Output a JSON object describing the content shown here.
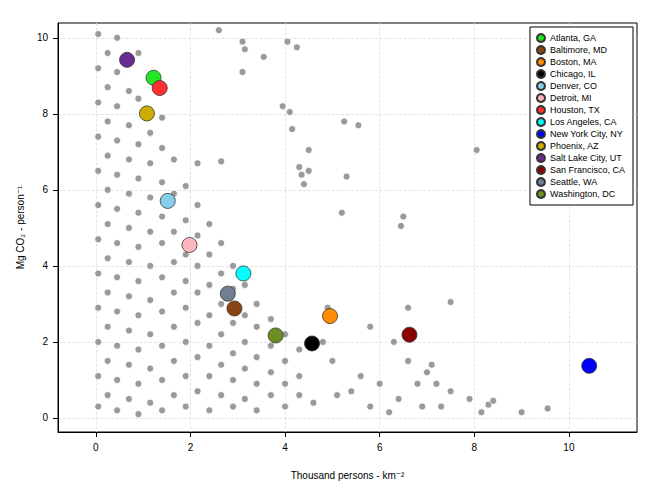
{
  "chart_data": {
    "type": "scatter",
    "x_label": "Thousand persons - km⁻²",
    "y_label": "Mg CO₂ - person⁻¹",
    "xlim": [
      -0.8,
      11.44
    ],
    "ylim": [
      -0.37,
      10.39
    ],
    "xticks": [
      0,
      2,
      4,
      6,
      8,
      10
    ],
    "yticks": [
      0,
      2,
      4,
      6,
      8,
      10
    ],
    "grid": true,
    "legend": "top-right",
    "marker": "circle",
    "series": [
      {
        "color": "#9a9a9a",
        "points": [
          [
            0.05,
            0.3
          ],
          [
            0.05,
            1.1
          ],
          [
            0.05,
            2.0
          ],
          [
            0.05,
            2.9
          ],
          [
            0.05,
            3.8
          ],
          [
            0.05,
            4.7
          ],
          [
            0.05,
            5.6
          ],
          [
            0.05,
            6.5
          ],
          [
            0.05,
            7.4
          ],
          [
            0.05,
            8.3
          ],
          [
            0.05,
            9.2
          ],
          [
            0.05,
            10.1
          ],
          [
            0.25,
            0.6
          ],
          [
            0.25,
            1.5
          ],
          [
            0.25,
            2.4
          ],
          [
            0.25,
            3.3
          ],
          [
            0.25,
            4.2
          ],
          [
            0.25,
            5.1
          ],
          [
            0.25,
            6.0
          ],
          [
            0.25,
            6.9
          ],
          [
            0.25,
            7.8
          ],
          [
            0.25,
            8.7
          ],
          [
            0.25,
            9.6
          ],
          [
            0.45,
            0.2
          ],
          [
            0.45,
            1.0
          ],
          [
            0.45,
            1.9
          ],
          [
            0.45,
            2.8
          ],
          [
            0.45,
            3.7
          ],
          [
            0.45,
            4.6
          ],
          [
            0.45,
            5.5
          ],
          [
            0.45,
            6.4
          ],
          [
            0.45,
            7.3
          ],
          [
            0.45,
            8.2
          ],
          [
            0.45,
            9.1
          ],
          [
            0.45,
            10.0
          ],
          [
            0.7,
            0.5
          ],
          [
            0.7,
            1.4
          ],
          [
            0.7,
            2.3
          ],
          [
            0.7,
            3.2
          ],
          [
            0.7,
            4.1
          ],
          [
            0.7,
            5.0
          ],
          [
            0.7,
            5.9
          ],
          [
            0.7,
            6.8
          ],
          [
            0.7,
            7.7
          ],
          [
            0.7,
            8.6
          ],
          [
            0.9,
            0.1
          ],
          [
            0.9,
            0.9
          ],
          [
            0.9,
            1.8
          ],
          [
            0.9,
            2.7
          ],
          [
            0.9,
            3.6
          ],
          [
            0.9,
            4.5
          ],
          [
            0.9,
            5.4
          ],
          [
            0.9,
            6.3
          ],
          [
            0.9,
            7.2
          ],
          [
            0.9,
            8.4
          ],
          [
            0.9,
            9.6
          ],
          [
            1.15,
            0.4
          ],
          [
            1.15,
            1.3
          ],
          [
            1.15,
            2.2
          ],
          [
            1.15,
            3.1
          ],
          [
            1.15,
            4.0
          ],
          [
            1.15,
            4.9
          ],
          [
            1.15,
            5.8
          ],
          [
            1.15,
            6.7
          ],
          [
            1.15,
            7.5
          ],
          [
            1.4,
            0.2
          ],
          [
            1.4,
            1.0
          ],
          [
            1.4,
            1.9
          ],
          [
            1.4,
            2.8
          ],
          [
            1.4,
            3.7
          ],
          [
            1.4,
            4.6
          ],
          [
            1.4,
            5.3
          ],
          [
            1.4,
            6.2
          ],
          [
            1.4,
            7.1
          ],
          [
            1.4,
            7.9
          ],
          [
            1.65,
            0.6
          ],
          [
            1.65,
            1.5
          ],
          [
            1.65,
            2.4
          ],
          [
            1.65,
            3.3
          ],
          [
            1.65,
            4.1
          ],
          [
            1.65,
            4.9
          ],
          [
            1.65,
            5.9
          ],
          [
            1.65,
            6.8
          ],
          [
            1.9,
            0.3
          ],
          [
            1.9,
            1.1
          ],
          [
            1.9,
            2.0
          ],
          [
            1.9,
            2.9
          ],
          [
            1.9,
            3.6
          ],
          [
            1.9,
            4.3
          ],
          [
            1.9,
            5.2
          ],
          [
            1.9,
            6.1
          ],
          [
            2.15,
            0.7
          ],
          [
            2.15,
            1.6
          ],
          [
            2.15,
            2.5
          ],
          [
            2.15,
            3.3
          ],
          [
            2.15,
            4.0
          ],
          [
            2.15,
            4.8
          ],
          [
            2.15,
            5.6
          ],
          [
            2.15,
            6.7
          ],
          [
            2.4,
            0.2
          ],
          [
            2.4,
            1.1
          ],
          [
            2.4,
            1.9
          ],
          [
            2.4,
            2.7
          ],
          [
            2.4,
            3.5
          ],
          [
            2.4,
            4.3
          ],
          [
            2.4,
            5.1
          ],
          [
            2.65,
            0.6
          ],
          [
            2.65,
            1.4
          ],
          [
            2.65,
            2.2
          ],
          [
            2.65,
            3.0
          ],
          [
            2.65,
            3.8
          ],
          [
            2.65,
            4.6
          ],
          [
            2.65,
            6.75
          ],
          [
            2.9,
            0.3
          ],
          [
            2.9,
            1.0
          ],
          [
            2.9,
            1.7
          ],
          [
            2.9,
            2.5
          ],
          [
            2.9,
            3.4
          ],
          [
            2.9,
            4.0
          ],
          [
            3.15,
            0.5
          ],
          [
            3.15,
            1.3
          ],
          [
            3.15,
            2.0
          ],
          [
            3.15,
            2.7
          ],
          [
            3.15,
            3.5
          ],
          [
            3.4,
            0.2
          ],
          [
            3.4,
            0.9
          ],
          [
            3.4,
            1.6
          ],
          [
            3.4,
            2.4
          ],
          [
            3.4,
            3.0
          ],
          [
            3.7,
            0.6
          ],
          [
            3.7,
            1.2
          ],
          [
            3.7,
            1.9
          ],
          [
            3.7,
            2.6
          ],
          [
            4.0,
            0.3
          ],
          [
            4.0,
            0.9
          ],
          [
            4.0,
            1.5
          ],
          [
            4.0,
            2.2
          ],
          [
            4.3,
            0.6
          ],
          [
            4.3,
            1.1
          ],
          [
            4.3,
            1.8
          ],
          [
            2.6,
            10.2
          ],
          [
            3.1,
            9.9
          ],
          [
            3.15,
            9.7
          ],
          [
            3.1,
            9.1
          ],
          [
            3.55,
            9.5
          ],
          [
            4.05,
            9.9
          ],
          [
            4.25,
            9.75
          ],
          [
            3.95,
            8.2
          ],
          [
            4.1,
            8.05
          ],
          [
            4.15,
            7.6
          ],
          [
            4.35,
            6.4
          ],
          [
            4.4,
            6.15
          ],
          [
            4.3,
            6.6
          ],
          [
            4.5,
            7.05
          ],
          [
            4.5,
            6.5
          ],
          [
            5.25,
            7.8
          ],
          [
            5.55,
            7.7
          ],
          [
            5.3,
            6.35
          ],
          [
            5.2,
            5.4
          ],
          [
            6.45,
            5.05
          ],
          [
            6.5,
            5.3
          ],
          [
            8.05,
            7.05
          ],
          [
            7.5,
            3.05
          ],
          [
            6.6,
            2.9
          ],
          [
            5.8,
            2.4
          ],
          [
            6.3,
            2.0
          ],
          [
            6.6,
            1.5
          ],
          [
            7.0,
            1.2
          ],
          [
            7.2,
            0.9
          ],
          [
            7.1,
            1.4
          ],
          [
            7.5,
            0.7
          ],
          [
            7.9,
            0.5
          ],
          [
            8.3,
            0.35
          ],
          [
            8.4,
            0.45
          ],
          [
            8.15,
            0.15
          ],
          [
            9.0,
            0.15
          ],
          [
            9.55,
            0.25
          ],
          [
            7.3,
            0.3
          ],
          [
            6.9,
            0.3
          ],
          [
            6.4,
            0.5
          ],
          [
            6.0,
            0.9
          ],
          [
            5.6,
            1.1
          ],
          [
            5.4,
            0.7
          ],
          [
            5.0,
            1.5
          ],
          [
            4.8,
            2.0
          ],
          [
            4.9,
            2.9
          ],
          [
            5.1,
            0.6
          ],
          [
            4.6,
            0.4
          ],
          [
            6.8,
            0.9
          ],
          [
            5.8,
            0.3
          ],
          [
            6.2,
            0.15
          ]
        ]
      },
      {
        "name": "Atlanta, GA",
        "color": "#22e622",
        "points": [
          [
            1.22,
            8.95
          ]
        ]
      },
      {
        "name": "Baltimore, MD",
        "color": "#8b4513",
        "points": [
          [
            2.93,
            2.88
          ]
        ]
      },
      {
        "name": "Boston, MA",
        "color": "#ff8c00",
        "points": [
          [
            4.95,
            2.68
          ]
        ]
      },
      {
        "name": "Chicago, IL",
        "color": "#000000",
        "points": [
          [
            4.57,
            1.96
          ]
        ]
      },
      {
        "name": "Denver, CO",
        "color": "#87ceeb",
        "points": [
          [
            1.52,
            5.71
          ]
        ]
      },
      {
        "name": "Detroit, MI",
        "color": "#ffb6c1",
        "points": [
          [
            1.98,
            4.55
          ]
        ]
      },
      {
        "name": "Houston, TX",
        "color": "#ff3030",
        "points": [
          [
            1.35,
            8.68
          ]
        ]
      },
      {
        "name": "Los Angeles, CA",
        "color": "#00ffff",
        "points": [
          [
            3.12,
            3.8
          ]
        ]
      },
      {
        "name": "New York City, NY",
        "color": "#0000ff",
        "points": [
          [
            10.43,
            1.37
          ]
        ]
      },
      {
        "name": "Phoenix, AZ",
        "color": "#cdad00",
        "points": [
          [
            1.08,
            8.01
          ]
        ]
      },
      {
        "name": "Salt Lake City, UT",
        "color": "#6a2c91",
        "points": [
          [
            0.66,
            9.42
          ]
        ]
      },
      {
        "name": "San Francisco, CA",
        "color": "#8b0000",
        "points": [
          [
            6.63,
            2.19
          ]
        ]
      },
      {
        "name": "Seattle, WA",
        "color": "#708090",
        "points": [
          [
            2.79,
            3.27
          ]
        ]
      },
      {
        "name": "Washington, DC",
        "color": "#6b8e23",
        "points": [
          [
            3.8,
            2.17
          ]
        ]
      }
    ]
  }
}
